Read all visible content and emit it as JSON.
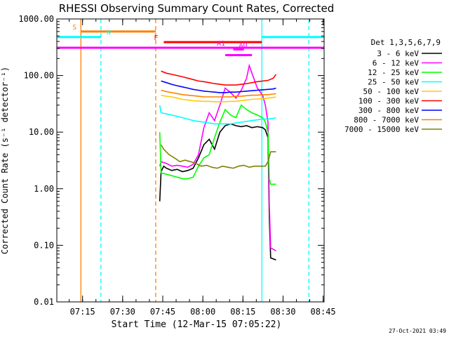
{
  "chart_data": {
    "type": "line",
    "title": "RHESSI Observing Summary Count Rates, Corrected",
    "xlabel": "Start Time (12-Mar-15 07:05:22)",
    "ylabel": "Corrected Count Rate (s⁻¹ detector⁻¹)",
    "footer": "27-Oct-2021 03:49",
    "x_unit": "minutes after 07:05:22",
    "xlim": [
      0,
      100
    ],
    "ylim": [
      0.01,
      1000
    ],
    "y_scale": "log",
    "grid": false,
    "legend_position": "right",
    "legend_title": "Det 1,3,5,6,7,9",
    "x_ticks": [
      {
        "value": 9.63,
        "label": "07:15"
      },
      {
        "value": 24.63,
        "label": "07:30"
      },
      {
        "value": 39.63,
        "label": "07:45"
      },
      {
        "value": 54.63,
        "label": "08:00"
      },
      {
        "value": 69.63,
        "label": "08:15"
      },
      {
        "value": 84.63,
        "label": "08:30"
      },
      {
        "value": 99.63,
        "label": "08:45"
      }
    ],
    "y_ticks": [
      {
        "value": 1000,
        "label": "1000.00"
      },
      {
        "value": 100,
        "label": "100.00"
      },
      {
        "value": 10,
        "label": "10.00"
      },
      {
        "value": 1,
        "label": "1.00"
      },
      {
        "value": 0.1,
        "label": "0.10"
      },
      {
        "value": 0.01,
        "label": "0.01"
      }
    ],
    "series": [
      {
        "name": "3 - 6 keV",
        "color": "#000000",
        "x": [
          38.5,
          39,
          40,
          41,
          43,
          45,
          47,
          49,
          51,
          53,
          55,
          57,
          59,
          61,
          63,
          65,
          67,
          69,
          71,
          73,
          75,
          77,
          78,
          79,
          79.5,
          80,
          82
        ],
        "y": [
          0.6,
          2.0,
          2.5,
          2.3,
          2.1,
          2.2,
          2.0,
          2.1,
          2.3,
          3.5,
          6.0,
          7.5,
          5.0,
          10.0,
          13.0,
          14.0,
          13.0,
          12.5,
          13.0,
          12.0,
          12.5,
          12.0,
          11.0,
          8.0,
          0.3,
          0.06,
          0.055
        ]
      },
      {
        "name": "6 - 12 keV",
        "color": "#ff00ff",
        "x": [
          38.5,
          39,
          41,
          43,
          45,
          47,
          49,
          51,
          53,
          55,
          57,
          59,
          61,
          63,
          65,
          67,
          69,
          71,
          72,
          73,
          75,
          77,
          78,
          79,
          79.5,
          80,
          82
        ],
        "y": [
          2.5,
          3.0,
          2.8,
          2.5,
          2.6,
          2.5,
          2.4,
          2.7,
          4.0,
          12.0,
          22.0,
          16.0,
          30.0,
          60.0,
          50.0,
          40.0,
          55.0,
          90.0,
          150.0,
          110.0,
          60.0,
          45.0,
          30.0,
          15.0,
          0.5,
          0.09,
          0.08
        ]
      },
      {
        "name": "12 - 25 keV",
        "color": "#00ff00",
        "x": [
          38.5,
          39,
          41,
          43,
          45,
          47,
          49,
          51,
          53,
          55,
          57,
          59,
          61,
          63,
          65,
          67,
          69,
          71,
          73,
          75,
          77,
          78,
          79,
          79.5,
          80,
          82
        ],
        "y": [
          10.0,
          1.9,
          1.8,
          1.7,
          1.6,
          1.5,
          1.5,
          1.6,
          2.5,
          3.5,
          4.0,
          8.0,
          15.0,
          25.0,
          20.0,
          18.0,
          30.0,
          25.0,
          22.0,
          20.0,
          18.0,
          15.0,
          10.0,
          1.5,
          1.2,
          1.2
        ]
      },
      {
        "name": "25 - 50 keV",
        "color": "#00ffff",
        "x": [
          38.5,
          39,
          41,
          43,
          45,
          47,
          49,
          51,
          53,
          55,
          57,
          59,
          61,
          63,
          65,
          67,
          69,
          71,
          73,
          75,
          77,
          79,
          81,
          82
        ],
        "y": [
          30.0,
          22.0,
          21.0,
          20.0,
          19.0,
          18.0,
          17.0,
          16.0,
          15.5,
          15.0,
          14.5,
          14.0,
          14.0,
          14.0,
          14.0,
          14.5,
          15.0,
          15.5,
          16.0,
          16.5,
          17.0,
          17.0,
          17.5,
          18.0
        ]
      },
      {
        "name": "50 - 100 keV",
        "color": "#ffcc00",
        "x": [
          39,
          41,
          43,
          45,
          47,
          49,
          51,
          53,
          55,
          57,
          59,
          61,
          63,
          65,
          67,
          69,
          71,
          73,
          75,
          77,
          79,
          81,
          82
        ],
        "y": [
          45.0,
          43.0,
          42.0,
          40.0,
          38.0,
          37.0,
          36.0,
          35.5,
          35.0,
          35.0,
          34.5,
          34.5,
          34.5,
          35.0,
          35.0,
          36.0,
          37.0,
          38.0,
          38.5,
          39.0,
          40.0,
          41.0,
          42.0
        ]
      },
      {
        "name": "100 - 300 keV",
        "color": "#ff0000",
        "x": [
          39,
          41,
          43,
          45,
          47,
          49,
          51,
          53,
          55,
          57,
          59,
          61,
          63,
          65,
          67,
          69,
          71,
          73,
          75,
          77,
          79,
          81,
          82
        ],
        "y": [
          120.0,
          110.0,
          105.0,
          100.0,
          95.0,
          90.0,
          85.0,
          80.0,
          78.0,
          75.0,
          72.0,
          70.0,
          68.0,
          68.0,
          68.0,
          70.0,
          72.0,
          75.0,
          78.0,
          80.0,
          82.0,
          90.0,
          105.0
        ]
      },
      {
        "name": "300 - 800 keV",
        "color": "#0000ff",
        "x": [
          39,
          41,
          43,
          45,
          47,
          49,
          51,
          53,
          55,
          57,
          59,
          61,
          63,
          65,
          67,
          69,
          71,
          73,
          75,
          77,
          79,
          81,
          82
        ],
        "y": [
          80.0,
          75.0,
          70.0,
          66.0,
          63.0,
          60.0,
          57.0,
          55.0,
          53.0,
          52.0,
          51.0,
          50.0,
          50.0,
          51.0,
          51.0,
          52.0,
          53.0,
          54.0,
          55.0,
          56.0,
          57.0,
          58.0,
          60.0
        ]
      },
      {
        "name": "800 - 7000 keV",
        "color": "#ff8000",
        "x": [
          39,
          41,
          43,
          45,
          47,
          49,
          51,
          53,
          55,
          57,
          59,
          61,
          63,
          65,
          67,
          69,
          71,
          73,
          75,
          77,
          79,
          81,
          82
        ],
        "y": [
          55.0,
          52.0,
          50.0,
          48.0,
          46.0,
          45.0,
          44.0,
          43.0,
          42.0,
          42.0,
          42.0,
          42.0,
          42.0,
          42.0,
          43.0,
          43.0,
          44.0,
          45.0,
          45.0,
          46.0,
          46.0,
          47.0,
          48.0
        ]
      },
      {
        "name": "7000 - 15000 keV",
        "color": "#808000",
        "x": [
          39,
          40,
          42,
          44,
          46,
          48,
          50,
          52,
          54,
          56,
          58,
          60,
          62,
          64,
          66,
          68,
          70,
          72,
          74,
          76,
          78,
          79,
          80,
          82
        ],
        "y": [
          6.0,
          5.0,
          4.0,
          3.5,
          3.0,
          3.2,
          3.0,
          2.8,
          2.5,
          2.6,
          2.4,
          2.3,
          2.5,
          2.4,
          2.3,
          2.5,
          2.6,
          2.4,
          2.5,
          2.5,
          2.5,
          3.0,
          4.5,
          4.5
        ]
      }
    ],
    "spans": [
      {
        "label": "S",
        "color": "#ff8000",
        "x1": 9.0,
        "x2": 37.0,
        "level": 600
      },
      {
        "label": "N",
        "color": "#00ffff",
        "x1": 0.0,
        "x2": 16.5,
        "level": 480
      },
      {
        "label": "N",
        "color": "#00ffff",
        "x1": 76.7,
        "x2": 100.0,
        "level": 480
      },
      {
        "label": "F",
        "color": "#ff0000",
        "x1": 40.0,
        "x2": 76.7,
        "level": 390
      },
      {
        "label": "AQ",
        "color": "#ff00ff",
        "x1": 66.0,
        "x2": 70.0,
        "level": 290
      },
      {
        "label": "A1",
        "color": "#ff00ff",
        "x1": 0.0,
        "x2": 100.0,
        "level": 310
      },
      {
        "label": "A1",
        "color": "#ff00ff",
        "x1": 63.0,
        "x2": 73.0,
        "level": 230
      }
    ],
    "markers": [
      {
        "x": 9.0,
        "color": "#ff8000",
        "style": "solid"
      },
      {
        "x": 16.5,
        "color": "#00ffff",
        "style": "dashed"
      },
      {
        "x": 37.0,
        "color": "#ff8000",
        "style": "dashed"
      },
      {
        "x": 76.7,
        "color": "#00ffff",
        "style": "solid"
      },
      {
        "x": 94.3,
        "color": "#00ffff",
        "style": "dashed"
      }
    ]
  }
}
